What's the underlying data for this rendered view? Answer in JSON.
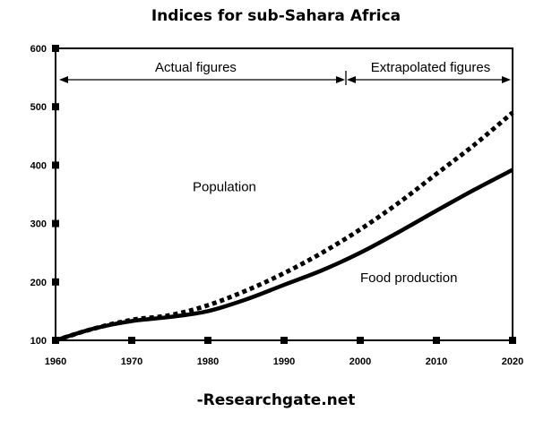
{
  "title": "Indices for sub-Sahara Africa",
  "source": "-Researchgate.net",
  "colors": {
    "line": "#000000",
    "background": "#ffffff"
  },
  "chart_data": {
    "type": "line",
    "xlim": [
      1960,
      2020
    ],
    "ylim": [
      100,
      600
    ],
    "xticks": [
      1960,
      1970,
      1980,
      1990,
      2000,
      2010,
      2020
    ],
    "yticks": [
      100,
      200,
      300,
      400,
      500,
      600
    ],
    "grid": false,
    "annotations": {
      "actual": "Actual figures",
      "extrapolated": "Extrapolated figures",
      "split_year": 1998
    },
    "series": [
      {
        "name": "Population",
        "style": "dotted",
        "x": [
          1960,
          1965,
          1970,
          1975,
          1980,
          1985,
          1990,
          1995,
          2000,
          2005,
          2010,
          2015,
          2020
        ],
        "y": [
          100,
          120,
          135,
          143,
          160,
          185,
          215,
          250,
          290,
          335,
          385,
          435,
          490
        ]
      },
      {
        "name": "Food production",
        "style": "solid",
        "x": [
          1960,
          1965,
          1970,
          1975,
          1980,
          1985,
          1990,
          1995,
          2000,
          2005,
          2010,
          2015,
          2020
        ],
        "y": [
          100,
          120,
          133,
          140,
          150,
          170,
          195,
          220,
          250,
          285,
          322,
          358,
          392
        ]
      }
    ],
    "labels": [
      {
        "text": "Population",
        "x": 1978,
        "y": 355
      },
      {
        "text": "Food production",
        "x": 2000,
        "y": 200
      }
    ]
  }
}
